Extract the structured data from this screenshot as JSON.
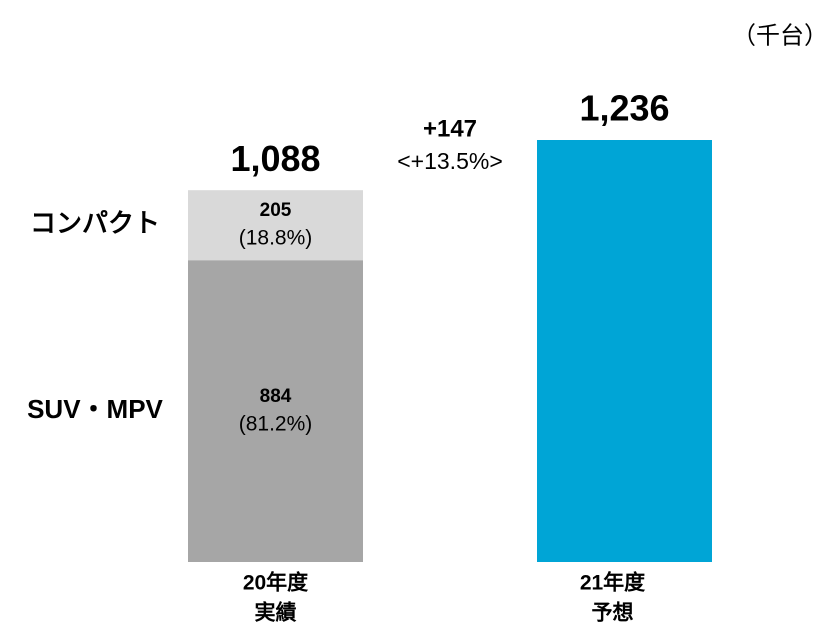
{
  "chart_data": {
    "type": "bar",
    "stacked": true,
    "unit": "（千台）",
    "categories": [
      [
        "20年度",
        "実績"
      ],
      [
        "21年度",
        "予想"
      ]
    ],
    "series": [
      {
        "name": "SUV・MPV",
        "color": "#a6a6a6",
        "values": [
          884,
          null
        ],
        "share_labels": [
          "(81.2%)",
          null
        ]
      },
      {
        "name": "コンパクト",
        "color": "#d9d9d9",
        "values": [
          205,
          null
        ],
        "share_labels": [
          "(18.8%)",
          null
        ]
      },
      {
        "color": "#00a5d6",
        "values": [
          null,
          1236
        ]
      }
    ],
    "totals": [
      1088,
      1236
    ],
    "total_labels": [
      "1,088",
      "1,236"
    ],
    "annotation": [
      "+147",
      "<+13.5%>"
    ]
  }
}
